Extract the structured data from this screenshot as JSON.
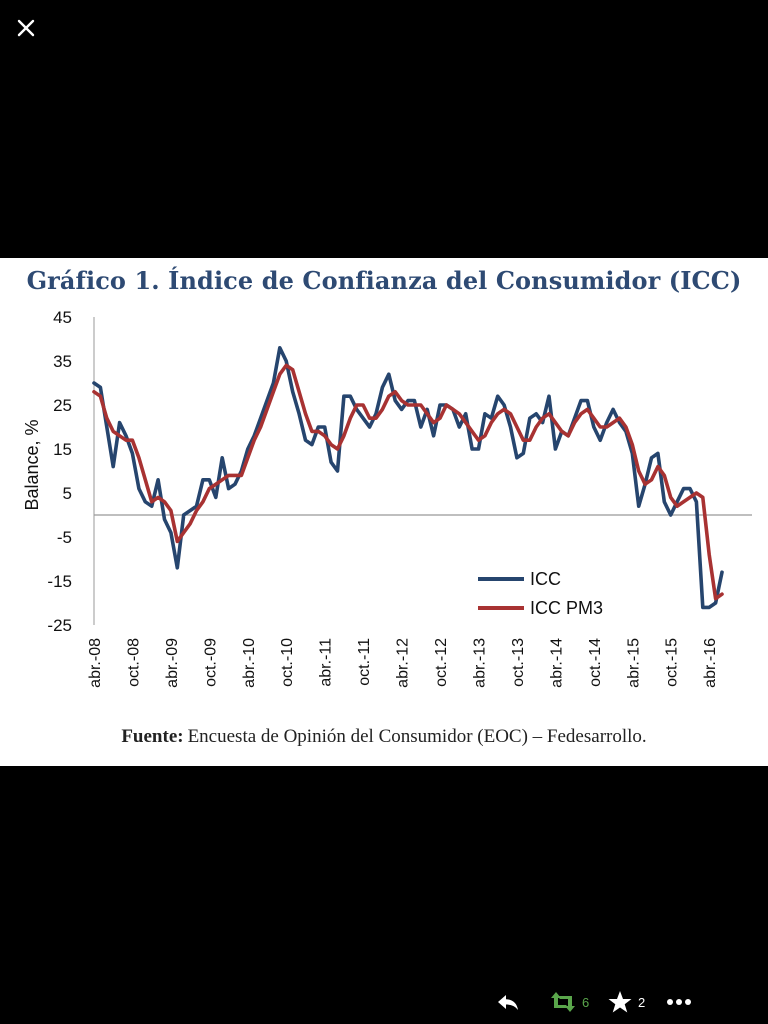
{
  "viewer": {
    "close_label": "Close"
  },
  "chart_data": {
    "type": "line",
    "title": "Gráfico 1. Índice de Confianza del Consumidor (ICC)",
    "xlabel": "",
    "ylabel": "Balance, %",
    "ylim": [
      -25,
      45
    ],
    "yticks": [
      45,
      35,
      25,
      15,
      5,
      -5,
      -15,
      -25
    ],
    "reference_line": 0,
    "tick_labels": [
      "abr.-08",
      "oct.-08",
      "abr.-09",
      "oct.-09",
      "abr.-10",
      "oct.-10",
      "abr.-11",
      "oct.-11",
      "abr.-12",
      "oct.-12",
      "abr.-13",
      "oct.-13",
      "abr.-14",
      "oct.-14",
      "abr.-15",
      "oct.-15",
      "abr.-16"
    ],
    "tick_index": [
      0,
      6,
      12,
      18,
      24,
      30,
      36,
      42,
      48,
      54,
      60,
      66,
      72,
      78,
      84,
      90,
      96
    ],
    "legend_position": "bottom-right",
    "series": [
      {
        "name": "ICC",
        "color": "#26456e",
        "values": [
          30,
          29,
          20,
          11,
          21,
          18,
          14,
          6,
          3,
          2,
          8,
          -1,
          -4,
          -12,
          0,
          1,
          2,
          8,
          8,
          4,
          13,
          6,
          7,
          10,
          15,
          18,
          22,
          26,
          30,
          38,
          35,
          28,
          23,
          17,
          16,
          20,
          20,
          12,
          10,
          27,
          27,
          24,
          22,
          20,
          23,
          29,
          32,
          26,
          24,
          26,
          26,
          20,
          24,
          18,
          25,
          25,
          24,
          20,
          23,
          15,
          15,
          23,
          22,
          27,
          25,
          20,
          13,
          14,
          22,
          23,
          21,
          27,
          15,
          19,
          18,
          22,
          26,
          26,
          20,
          17,
          21,
          24,
          21,
          19,
          14,
          2,
          7,
          13,
          14,
          3,
          0,
          3,
          6,
          6,
          3,
          -21,
          -21,
          -20,
          -13
        ]
      },
      {
        "name": "ICC PM3",
        "color": "#a83232",
        "values": [
          28,
          27,
          22,
          19,
          18,
          17,
          17,
          13,
          8,
          3,
          4,
          3,
          1,
          -6,
          -4,
          -2,
          1,
          3,
          6,
          7,
          8,
          9,
          9,
          9,
          13,
          17,
          20,
          24,
          28,
          32,
          34,
          33,
          28,
          23,
          19,
          19,
          18,
          16,
          15,
          18,
          22,
          25,
          25,
          22,
          22,
          24,
          27,
          28,
          26,
          25,
          25,
          25,
          23,
          21,
          22,
          25,
          24,
          23,
          21,
          19,
          17,
          18,
          21,
          23,
          24,
          23,
          20,
          17,
          17,
          20,
          22,
          23,
          21,
          19,
          18,
          21,
          23,
          24,
          22,
          20,
          20,
          21,
          22,
          20,
          16,
          10,
          7,
          8,
          11,
          9,
          4,
          2,
          3,
          4,
          5,
          4,
          -9,
          -19,
          -18
        ]
      }
    ]
  },
  "source": {
    "label": "Fuente:",
    "text": "Encuesta de Opinión del Consumidor (EOC) – Fedesarrollo."
  },
  "actions": {
    "retweet_count": "6",
    "favorite_count": "2",
    "reply_label": "Reply",
    "retweet_label": "Retweet",
    "favorite_label": "Favorite",
    "more_label": "More"
  },
  "colors": {
    "title": "#2e4a73",
    "axis": "#999999",
    "retweet": "#5aa64b",
    "icons": "#ffffff"
  }
}
